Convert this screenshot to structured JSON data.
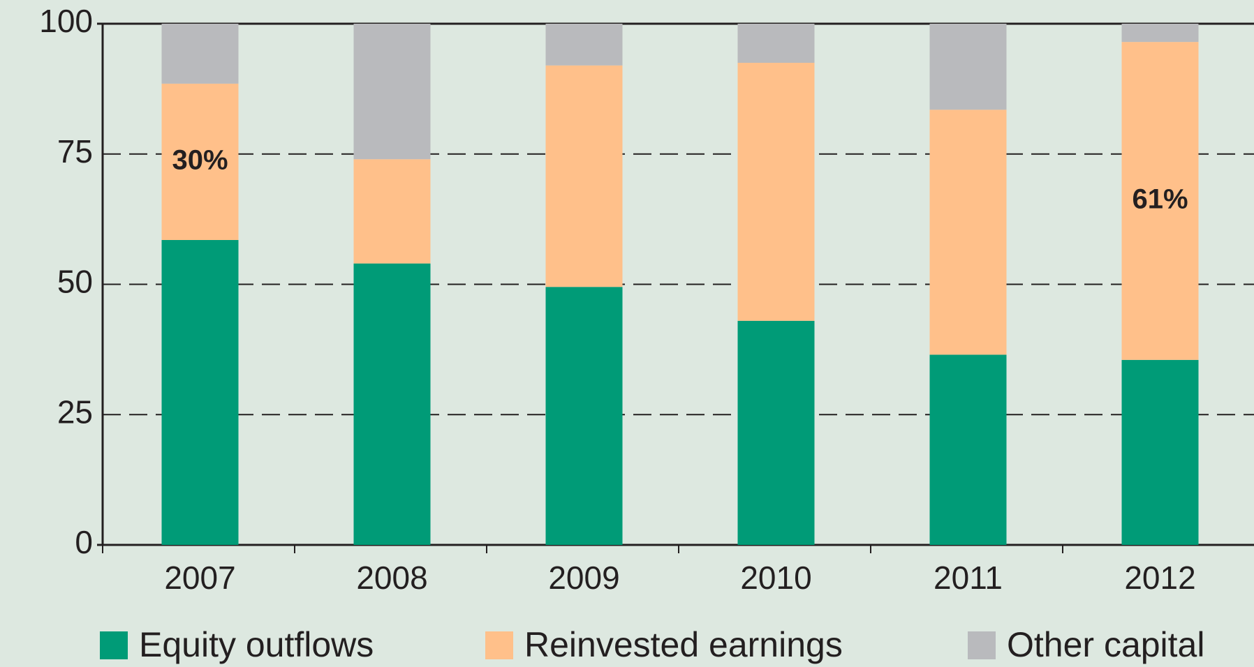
{
  "chart_data": {
    "type": "stacked_bar",
    "categories": [
      "2007",
      "2008",
      "2009",
      "2010",
      "2011",
      "2012"
    ],
    "series": [
      {
        "name": "Equity outflows",
        "color": "#009b77",
        "values": [
          58.5,
          54,
          49.5,
          43,
          36.5,
          35.5
        ]
      },
      {
        "name": "Reinvested earnings",
        "color": "#ffc08a",
        "values": [
          30,
          20,
          42.5,
          49.5,
          47,
          61
        ],
        "value_labels": [
          "30%",
          null,
          null,
          null,
          null,
          "61%"
        ]
      },
      {
        "name": "Other capital",
        "color": "#b9babd",
        "values": [
          11.5,
          26,
          8,
          7.5,
          16.5,
          3.5
        ]
      }
    ],
    "ylim": [
      0,
      100
    ],
    "yticks": [
      0,
      25,
      50,
      75,
      100
    ],
    "grid": true,
    "legend": "bottom"
  }
}
